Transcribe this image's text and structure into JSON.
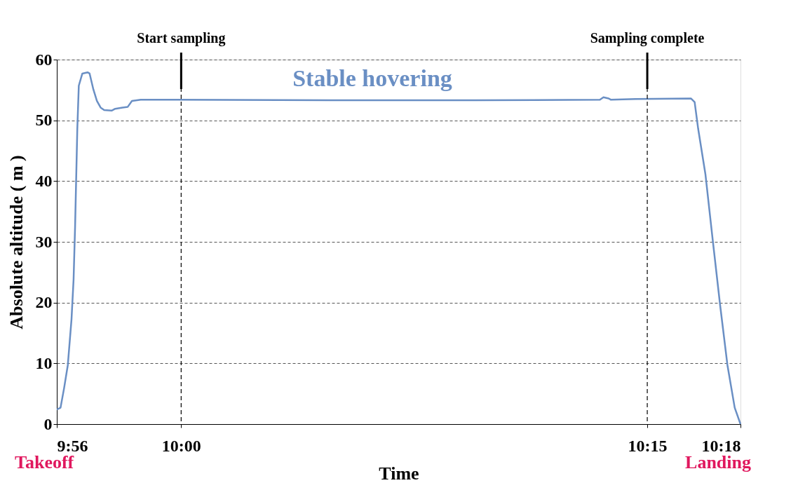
{
  "chart_data": {
    "type": "line",
    "xlabel": "Time",
    "ylabel": "Absolute altitude ( m )",
    "x": [
      9.9333,
      9.9353,
      9.9372,
      9.9392,
      9.9412,
      9.9423,
      9.9431,
      9.9443,
      9.9451,
      9.947,
      9.9498,
      9.9509,
      9.9529,
      9.9548,
      9.9568,
      9.9587,
      9.9627,
      9.9646,
      9.9685,
      9.9713,
      9.9736,
      9.9783,
      9.9982,
      10.0799,
      10.1581,
      10.2246,
      10.2265,
      10.2293,
      10.2304,
      10.2437,
      10.2734,
      10.2754,
      10.2773,
      10.2812,
      10.2851,
      10.2891,
      10.293,
      10.2969,
      10.3
    ],
    "series": [
      {
        "color": "#6a8fc4",
        "values": [
          2.4,
          2.7,
          5.9,
          9.7,
          17.3,
          23.8,
          32.4,
          48.6,
          55.7,
          57.7,
          57.9,
          57.7,
          55.1,
          53.2,
          52.1,
          51.7,
          51.6,
          51.9,
          52.1,
          52.2,
          53.2,
          53.4,
          53.4,
          53.3,
          53.3,
          53.4,
          53.8,
          53.6,
          53.4,
          53.5,
          53.6,
          53.0,
          48.6,
          41.1,
          30.3,
          19.5,
          9.7,
          2.7,
          0
        ]
      }
    ],
    "xlim": [
      9.9333,
      10.3
    ],
    "xticks": [
      {
        "value": 9.9333,
        "label": "9:56"
      },
      {
        "value": 10.0,
        "label": "10:00"
      },
      {
        "value": 10.25,
        "label": "10:15"
      },
      {
        "value": 10.3,
        "label": "10:18"
      }
    ],
    "ylim": [
      0,
      60
    ],
    "yticks": [
      0,
      10,
      20,
      30,
      40,
      50,
      60
    ],
    "grid": "y",
    "ref_lines": [
      {
        "axis": "x",
        "value": 10.0,
        "label": "Start sampling",
        "line_style": "dashed",
        "color": "#000000"
      },
      {
        "axis": "x",
        "value": 10.25,
        "label": "Sampling complete",
        "line_style": "dashed",
        "color": "#000000"
      }
    ],
    "annotations": [
      "Stable hovering",
      "Takeoff",
      "Landing"
    ],
    "marker": "none",
    "line_style": "solid"
  }
}
